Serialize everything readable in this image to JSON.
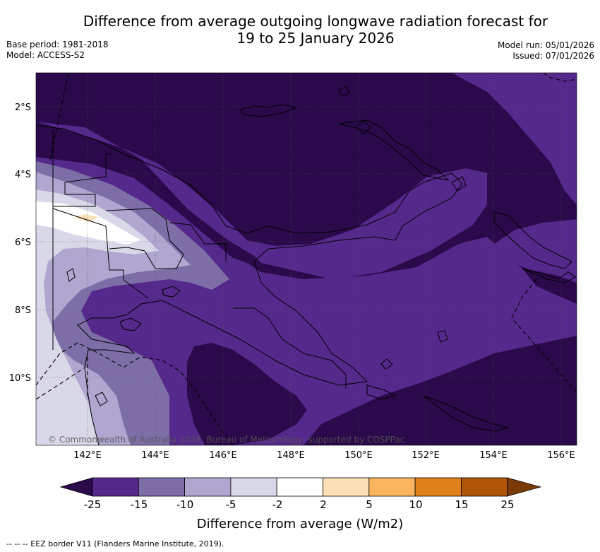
{
  "title_line1": "Difference from average outgoing longwave radiation forecast for",
  "title_line2": "19 to 25 January 2026",
  "base_period": "Base period: 1981-2018",
  "model": "Model: ACCESS-S2",
  "model_run": "Model run: 05/01/2026",
  "issued": "Issued: 07/01/2026",
  "lat_labels": [
    "2°S",
    "4°S",
    "6°S",
    "8°S",
    "10°S"
  ],
  "lon_labels": [
    "142°E",
    "144°E",
    "146°E",
    "148°E",
    "150°E",
    "152°E",
    "154°E",
    "156°E"
  ],
  "copyright": "© Commonwealth of Australia 2026, Bureau of Meteorology, supported by COSPPac",
  "colorbar": {
    "labels": [
      "-25",
      "-15",
      "-10",
      "-5",
      "-2",
      "2",
      "5",
      "10",
      "15",
      "25"
    ],
    "colors": [
      "#2a0a4a",
      "#55288c",
      "#7e6ea8",
      "#b0a6cf",
      "#d8d8e8",
      "#ffffff",
      "#fde0b6",
      "#fbb45e",
      "#e0801a",
      "#b05408",
      "#7a3a06"
    ],
    "title": "Difference from average (W/m2)"
  },
  "footnote": "-- -- -- EEZ border V11 (Flanders Marine Institute, 2019)."
}
